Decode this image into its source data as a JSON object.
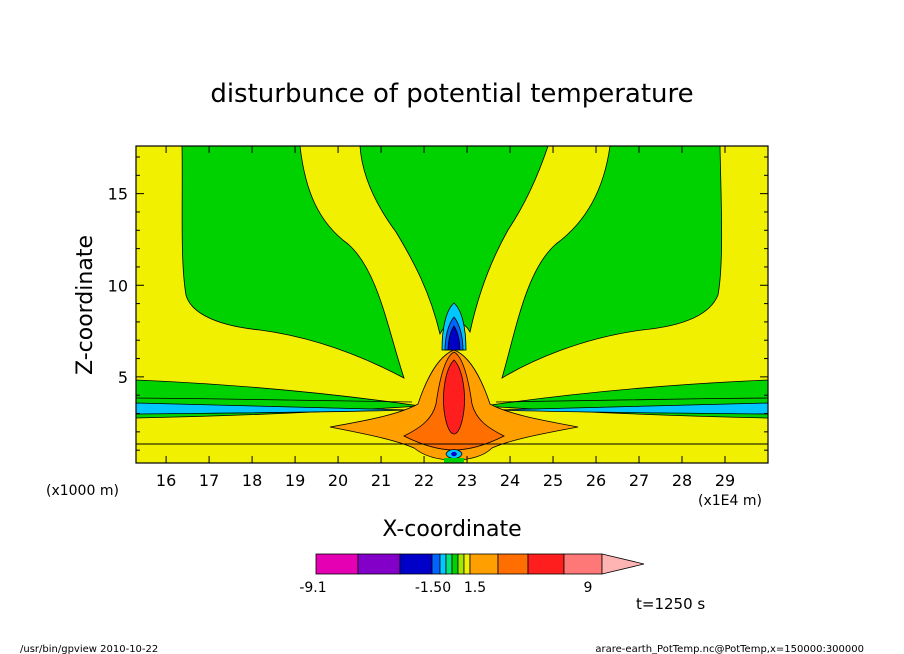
{
  "chart_data": {
    "type": "heatmap",
    "subtype": "filled-contour",
    "title": "disturbunce of potential temperature",
    "xlabel": "X-coordinate",
    "ylabel": "Z-coordinate",
    "x_scale_note": "(x1E4 m)",
    "z_scale_note": "(x1000 m)",
    "xlim": [
      15.3,
      30.0
    ],
    "ylim": [
      0.3,
      17.6
    ],
    "x_ticks": [
      "16",
      "17",
      "18",
      "19",
      "20",
      "21",
      "22",
      "23",
      "24",
      "25",
      "26",
      "27",
      "28",
      "29"
    ],
    "y_ticks": [
      "5",
      "10",
      "15"
    ],
    "time_label": "t=1250 s",
    "colorbar": {
      "tick_labels": [
        "-9.1",
        "-1.50",
        "1.5",
        "9"
      ],
      "colors": [
        "#e600b4",
        "#8200c8",
        "#0000c8",
        "#0064ff",
        "#00c8ff",
        "#00e678",
        "#00d200",
        "#a0e600",
        "#f0f000",
        "#ffa000",
        "#ff6e00",
        "#ff1e1e",
        "#ff7878",
        "#ffb4b4"
      ]
    }
  },
  "footer": {
    "left": "/usr/bin/gpview  2010-10-22",
    "right": "arare-earth_PotTemp.nc@PotTemp,x=150000:300000"
  }
}
